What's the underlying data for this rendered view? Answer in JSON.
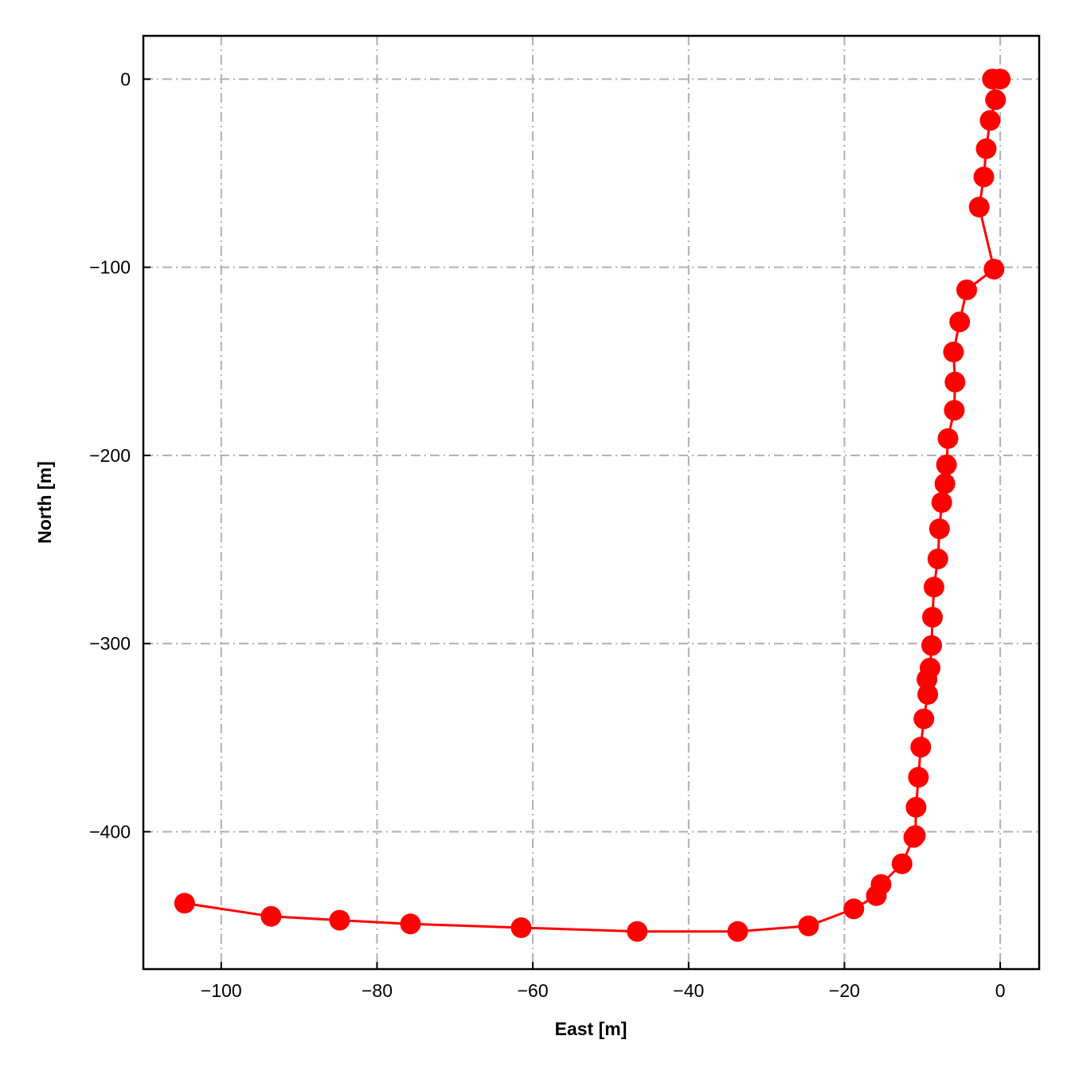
{
  "chart_data": {
    "type": "line",
    "title": "",
    "xlabel": "East [m]",
    "ylabel": "North [m]",
    "xlim": [
      -110,
      5
    ],
    "ylim": [
      -473,
      23
    ],
    "xticks": [
      -100,
      -80,
      -60,
      -40,
      -20,
      0
    ],
    "yticks": [
      0,
      -100,
      -200,
      -300,
      -400
    ],
    "xtick_labels": [
      "−100",
      "−80",
      "−60",
      "−40",
      "−20",
      "0"
    ],
    "ytick_labels": [
      "0",
      "−100",
      "−200",
      "−300",
      "−400"
    ],
    "grid": true,
    "markers": true,
    "series": [
      {
        "color": "#ff0000",
        "x": [
          0.0,
          -1.0,
          -0.6,
          -1.3,
          -1.8,
          -2.1,
          -2.7,
          -0.8,
          -4.3,
          -5.2,
          -6.0,
          -5.8,
          -5.9,
          -6.7,
          -6.9,
          -7.1,
          -7.5,
          -7.8,
          -8.0,
          -8.5,
          -8.7,
          -8.8,
          -9.0,
          -9.4,
          -9.3,
          -9.8,
          -10.2,
          -10.5,
          -10.8,
          -10.9,
          -11.1,
          -12.6,
          -15.3,
          -15.9,
          -18.8,
          -24.6,
          -33.7,
          -46.6,
          -61.5,
          -75.7,
          -84.8,
          -93.6,
          -104.7
        ],
        "y": [
          0,
          0,
          -11,
          -22,
          -37,
          -52,
          -68,
          -101,
          -112,
          -129,
          -145,
          -161,
          -176,
          -191,
          -205,
          -215,
          -225,
          -239,
          -255,
          -270,
          -286,
          -301,
          -313,
          -319,
          -327,
          -340,
          -355,
          -371,
          -387,
          -402,
          -403,
          -417,
          -428,
          -434,
          -441,
          -450,
          -453,
          -453,
          -451,
          -449,
          -447,
          -445,
          -438
        ]
      }
    ]
  }
}
